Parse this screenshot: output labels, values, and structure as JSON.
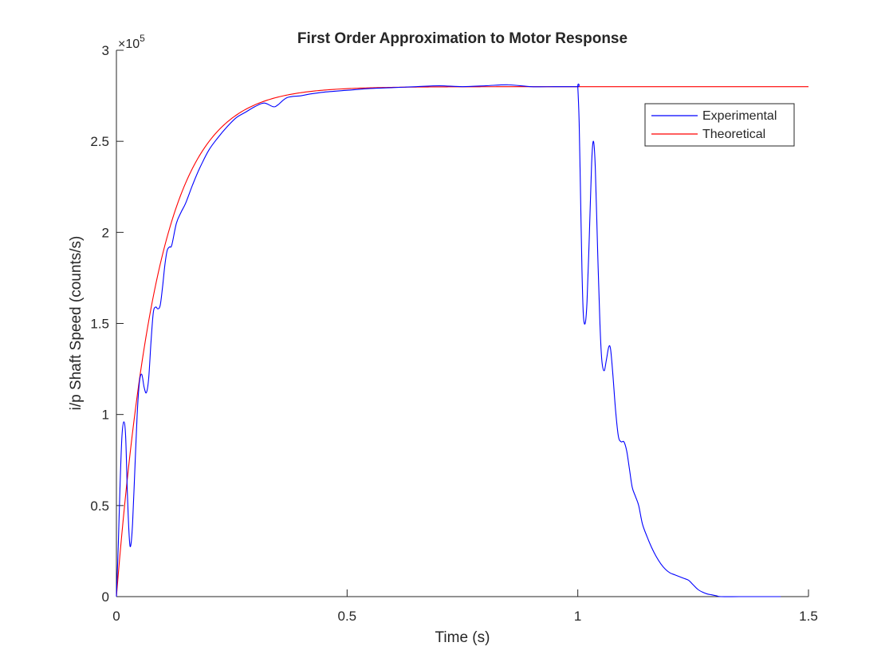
{
  "colors": {
    "experimental": "#0000ff",
    "theoretical": "#ff0000",
    "axis": "#262626",
    "background": "#ffffff"
  },
  "chart_data": {
    "type": "line",
    "title": "First Order Approximation to Motor Response",
    "xlabel": "Time (s)",
    "ylabel": "i/p Shaft Speed (counts/s)",
    "y_exponent_label": "×10",
    "y_exponent_power": "5",
    "xlim": [
      0,
      1.5
    ],
    "ylim": [
      0,
      3
    ],
    "y_scale_multiplier": 100000,
    "xticks": [
      0,
      0.5,
      1,
      1.5
    ],
    "xtick_labels": [
      "0",
      "0.5",
      "1",
      "1.5"
    ],
    "yticks": [
      0,
      0.5,
      1,
      1.5,
      2,
      2.5,
      3
    ],
    "ytick_labels": [
      "0",
      "0.5",
      "1",
      "1.5",
      "2",
      "2.5",
      "3"
    ],
    "grid": false,
    "legend_position": "top-right",
    "series": [
      {
        "name": "Experimental",
        "color": "#0000ff",
        "points": [
          [
            0,
            0
          ],
          [
            0.004,
            0.28
          ],
          [
            0.008,
            0.62
          ],
          [
            0.012,
            0.88
          ],
          [
            0.016,
            0.96
          ],
          [
            0.02,
            0.88
          ],
          [
            0.024,
            0.55
          ],
          [
            0.028,
            0.32
          ],
          [
            0.031,
            0.28
          ],
          [
            0.035,
            0.4
          ],
          [
            0.04,
            0.7
          ],
          [
            0.045,
            1.0
          ],
          [
            0.05,
            1.18
          ],
          [
            0.055,
            1.22
          ],
          [
            0.06,
            1.15
          ],
          [
            0.065,
            1.12
          ],
          [
            0.07,
            1.2
          ],
          [
            0.075,
            1.4
          ],
          [
            0.08,
            1.56
          ],
          [
            0.085,
            1.59
          ],
          [
            0.09,
            1.58
          ],
          [
            0.095,
            1.6
          ],
          [
            0.1,
            1.7
          ],
          [
            0.105,
            1.82
          ],
          [
            0.11,
            1.9
          ],
          [
            0.115,
            1.92
          ],
          [
            0.12,
            1.93
          ],
          [
            0.13,
            2.05
          ],
          [
            0.14,
            2.11
          ],
          [
            0.15,
            2.16
          ],
          [
            0.165,
            2.26
          ],
          [
            0.18,
            2.35
          ],
          [
            0.2,
            2.45
          ],
          [
            0.22,
            2.52
          ],
          [
            0.24,
            2.58
          ],
          [
            0.26,
            2.63
          ],
          [
            0.28,
            2.66
          ],
          [
            0.3,
            2.69
          ],
          [
            0.32,
            2.71
          ],
          [
            0.34,
            2.69
          ],
          [
            0.35,
            2.7
          ],
          [
            0.37,
            2.74
          ],
          [
            0.4,
            2.75
          ],
          [
            0.42,
            2.76
          ],
          [
            0.45,
            2.77
          ],
          [
            0.5,
            2.78
          ],
          [
            0.55,
            2.79
          ],
          [
            0.6,
            2.795
          ],
          [
            0.65,
            2.8
          ],
          [
            0.7,
            2.805
          ],
          [
            0.75,
            2.8
          ],
          [
            0.8,
            2.805
          ],
          [
            0.85,
            2.81
          ],
          [
            0.9,
            2.8
          ],
          [
            0.95,
            2.8
          ],
          [
            0.999,
            2.8
          ],
          [
            1.0,
            2.8
          ],
          [
            1.003,
            2.6
          ],
          [
            1.006,
            2.2
          ],
          [
            1.009,
            1.8
          ],
          [
            1.012,
            1.55
          ],
          [
            1.016,
            1.5
          ],
          [
            1.02,
            1.62
          ],
          [
            1.025,
            1.98
          ],
          [
            1.03,
            2.38
          ],
          [
            1.034,
            2.5
          ],
          [
            1.038,
            2.35
          ],
          [
            1.043,
            1.9
          ],
          [
            1.048,
            1.5
          ],
          [
            1.052,
            1.3
          ],
          [
            1.057,
            1.24
          ],
          [
            1.062,
            1.3
          ],
          [
            1.067,
            1.37
          ],
          [
            1.071,
            1.36
          ],
          [
            1.076,
            1.22
          ],
          [
            1.082,
            1.02
          ],
          [
            1.088,
            0.88
          ],
          [
            1.094,
            0.85
          ],
          [
            1.1,
            0.85
          ],
          [
            1.106,
            0.8
          ],
          [
            1.112,
            0.7
          ],
          [
            1.118,
            0.6
          ],
          [
            1.125,
            0.55
          ],
          [
            1.132,
            0.5
          ],
          [
            1.14,
            0.4
          ],
          [
            1.15,
            0.33
          ],
          [
            1.16,
            0.27
          ],
          [
            1.17,
            0.22
          ],
          [
            1.18,
            0.18
          ],
          [
            1.19,
            0.15
          ],
          [
            1.2,
            0.13
          ],
          [
            1.21,
            0.12
          ],
          [
            1.22,
            0.11
          ],
          [
            1.23,
            0.1
          ],
          [
            1.24,
            0.09
          ],
          [
            1.25,
            0.065
          ],
          [
            1.26,
            0.04
          ],
          [
            1.27,
            0.025
          ],
          [
            1.28,
            0.015
          ],
          [
            1.29,
            0.01
          ],
          [
            1.3,
            0.005
          ],
          [
            1.31,
            0.0
          ],
          [
            1.35,
            0.0
          ],
          [
            1.4,
            0.0
          ],
          [
            1.44,
            0.0
          ]
        ]
      },
      {
        "name": "Theoretical",
        "color": "#ff0000",
        "function": "first_order",
        "gain": 2.8,
        "time_constant": 0.09,
        "x_start": 0,
        "x_end": 1.5
      }
    ]
  }
}
